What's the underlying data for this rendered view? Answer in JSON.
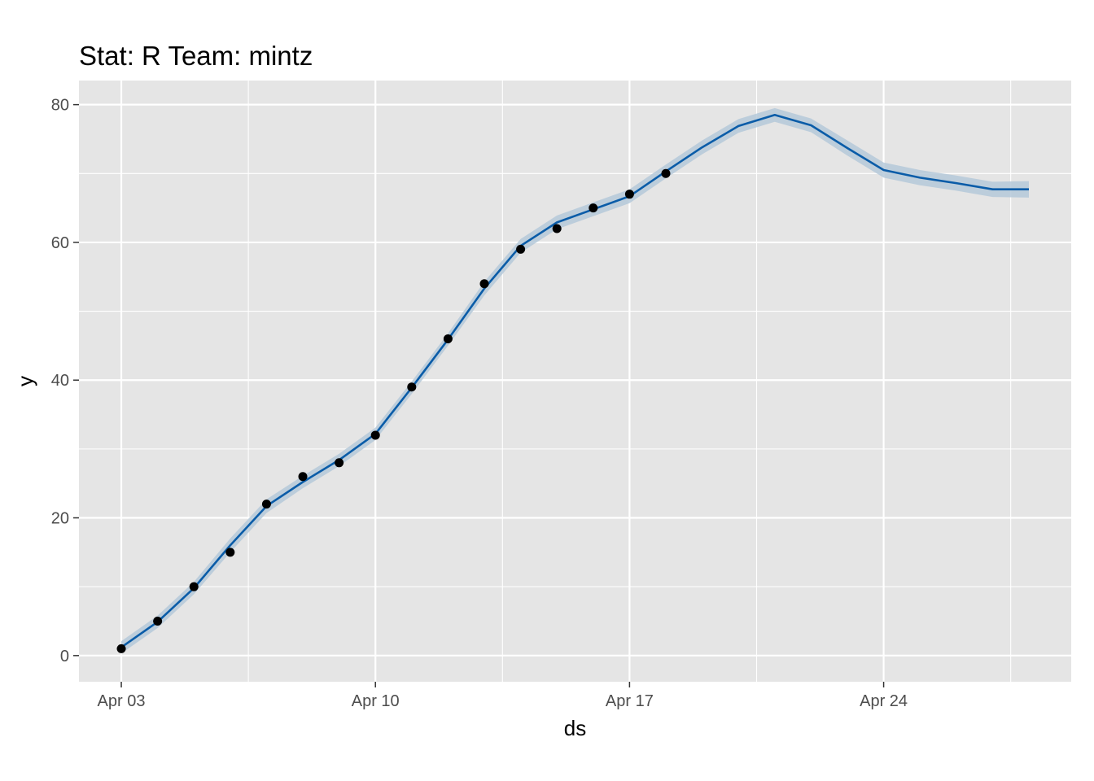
{
  "chart_data": {
    "type": "line",
    "title": "Stat: R Team: mintz",
    "xlabel": "ds",
    "ylabel": "y",
    "x_axis": {
      "type": "date",
      "range": [
        "2020-04-01 20:00",
        "2020-04-29 04:00"
      ],
      "major_ticks": [
        "2020-04-03",
        "2020-04-10",
        "2020-04-17",
        "2020-04-24"
      ],
      "major_tick_labels": [
        "Apr 03",
        "Apr 10",
        "Apr 17",
        "Apr 24"
      ],
      "minor_ticks": [
        "2020-04-06 12:00",
        "2020-04-13 12:00",
        "2020-04-20 12:00",
        "2020-04-27 12:00"
      ]
    },
    "y_axis": {
      "range": [
        -3.8,
        83.5
      ],
      "major_ticks": [
        0,
        20,
        40,
        60,
        80
      ],
      "tick_labels": [
        "0",
        "20",
        "40",
        "60",
        "80"
      ],
      "minor_ticks": [
        10,
        30,
        50,
        70
      ]
    },
    "grid": true,
    "background": "#e5e5e5",
    "colors": {
      "forecast_line": "#0a5ca8",
      "uncertainty_band": "#b5c9d9",
      "observed_points": "#000000",
      "grid_line": "#ffffff"
    },
    "series": [
      {
        "kind": "observed-points",
        "x": [
          "2020-04-03",
          "2020-04-04",
          "2020-04-05",
          "2020-04-06",
          "2020-04-07",
          "2020-04-08",
          "2020-04-09",
          "2020-04-10",
          "2020-04-11",
          "2020-04-12",
          "2020-04-13",
          "2020-04-14",
          "2020-04-15",
          "2020-04-16",
          "2020-04-17",
          "2020-04-18"
        ],
        "values": [
          1,
          5,
          10,
          15,
          22,
          26,
          28,
          32,
          39,
          46,
          54,
          59,
          62,
          65,
          67,
          70
        ]
      },
      {
        "kind": "forecast-line",
        "x": [
          "2020-04-03",
          "2020-04-04",
          "2020-04-05",
          "2020-04-06",
          "2020-04-07",
          "2020-04-08",
          "2020-04-09",
          "2020-04-10",
          "2020-04-11",
          "2020-04-12",
          "2020-04-13",
          "2020-04-14",
          "2020-04-15",
          "2020-04-16",
          "2020-04-17",
          "2020-04-18",
          "2020-04-19",
          "2020-04-20",
          "2020-04-21",
          "2020-04-22",
          "2020-04-23",
          "2020-04-24",
          "2020-04-25",
          "2020-04-26",
          "2020-04-27",
          "2020-04-28"
        ],
        "values": [
          1.2,
          4.9,
          9.8,
          16.0,
          21.7,
          25.2,
          28.4,
          32.2,
          38.9,
          45.9,
          53.3,
          59.5,
          62.9,
          64.8,
          66.7,
          70.3,
          73.8,
          76.9,
          78.5,
          77.0,
          73.7,
          70.5,
          69.4,
          68.6,
          67.7,
          67.7
        ]
      },
      {
        "kind": "uncertainty-band",
        "x": [
          "2020-04-03",
          "2020-04-04",
          "2020-04-05",
          "2020-04-06",
          "2020-04-07",
          "2020-04-08",
          "2020-04-09",
          "2020-04-10",
          "2020-04-11",
          "2020-04-12",
          "2020-04-13",
          "2020-04-14",
          "2020-04-15",
          "2020-04-16",
          "2020-04-17",
          "2020-04-18",
          "2020-04-19",
          "2020-04-20",
          "2020-04-21",
          "2020-04-22",
          "2020-04-23",
          "2020-04-24",
          "2020-04-25",
          "2020-04-26",
          "2020-04-27",
          "2020-04-28"
        ],
        "lower": [
          0.3,
          4.0,
          8.9,
          15.0,
          20.7,
          24.3,
          27.5,
          31.3,
          38.0,
          45.0,
          52.3,
          58.5,
          61.9,
          63.8,
          65.7,
          69.3,
          72.8,
          75.9,
          77.5,
          76.0,
          72.6,
          69.4,
          68.3,
          67.5,
          66.6,
          66.5
        ],
        "upper": [
          2.1,
          5.8,
          10.7,
          17.0,
          22.7,
          26.1,
          29.3,
          33.1,
          39.8,
          46.8,
          54.3,
          60.5,
          63.9,
          65.8,
          67.7,
          71.3,
          74.8,
          77.9,
          79.5,
          78.0,
          74.8,
          71.6,
          70.5,
          69.7,
          68.8,
          68.9
        ]
      }
    ]
  }
}
